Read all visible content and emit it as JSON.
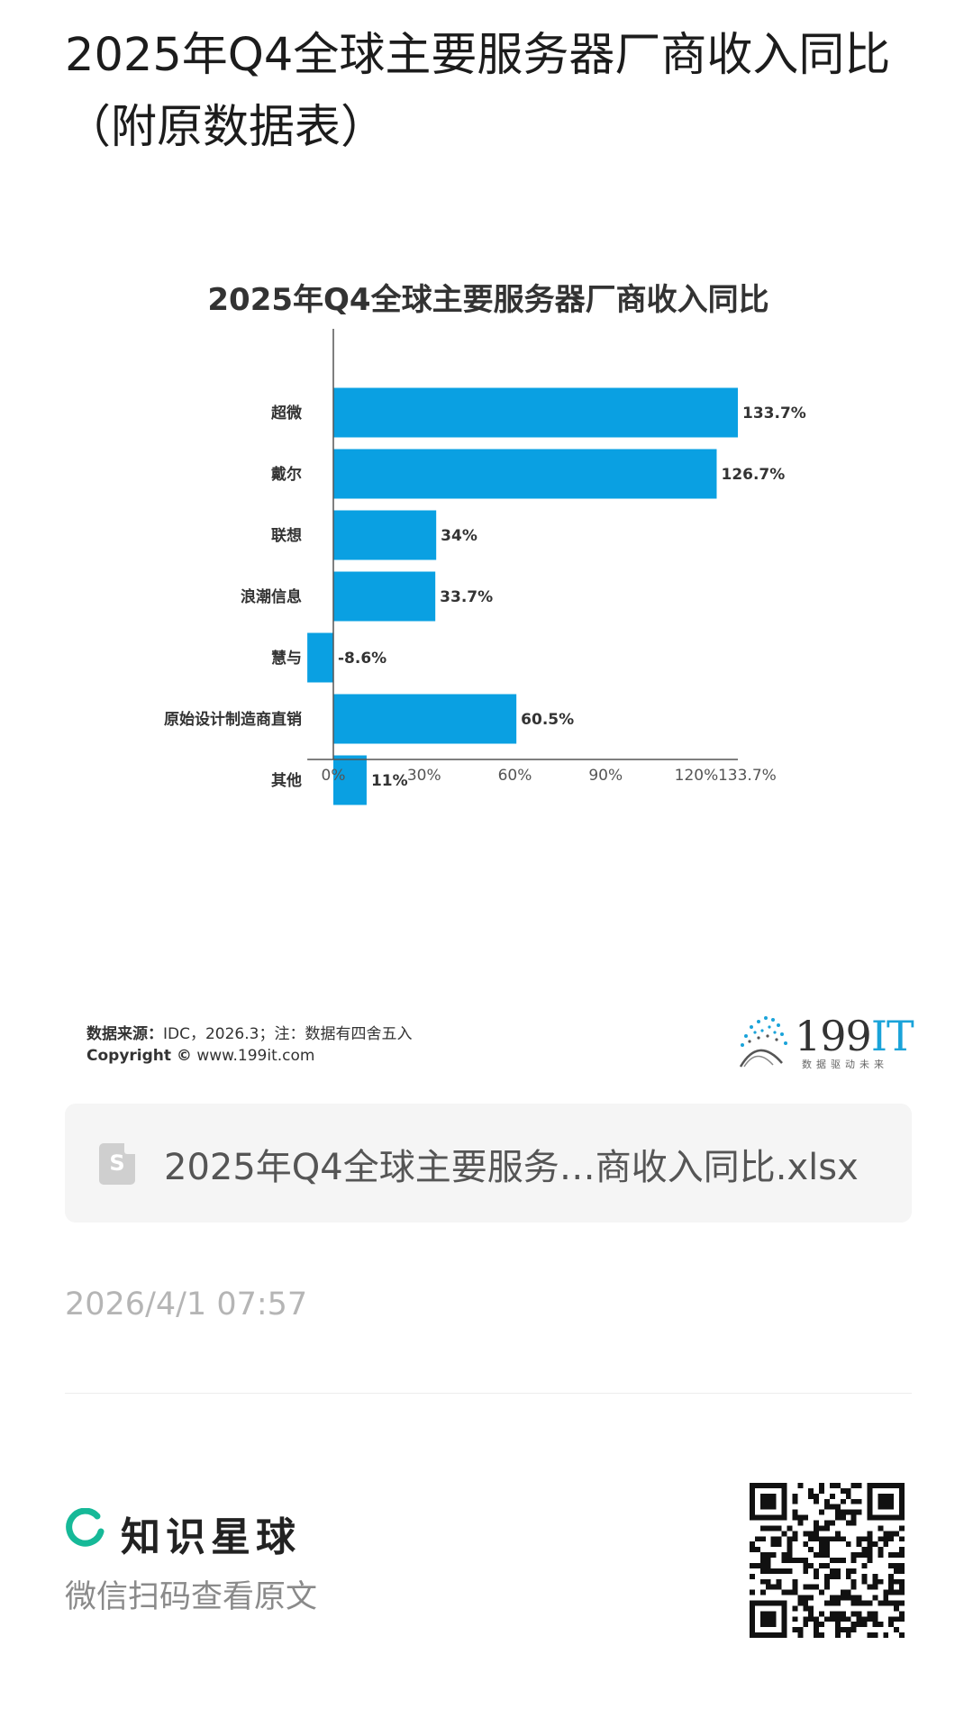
{
  "page": {
    "title": "2025年Q4全球主要服务器厂商收入同比（附原数据表）"
  },
  "chart": {
    "title": "2025年Q4全球主要服务器厂商收入同比",
    "source_label": "数据来源：",
    "source_text": "IDC，2026.3；注：数据有四舍五入",
    "copyright_label": "Copyright ©",
    "copyright_text": "www.199it.com",
    "brand_number": "199",
    "brand_it": "IT",
    "brand_slogan": "数据驱动未来",
    "bar_color": "#0aa0e2"
  },
  "chart_data": {
    "type": "bar",
    "orientation": "horizontal",
    "title": "2025年Q4全球主要服务器厂商收入同比",
    "categories": [
      "超微",
      "戴尔",
      "联想",
      "浪潮信息",
      "慧与",
      "原始设计制造商直销",
      "其他"
    ],
    "values": [
      133.7,
      126.7,
      34,
      33.7,
      -8.6,
      60.5,
      11
    ],
    "value_labels": [
      "133.7%",
      "126.7%",
      "34%",
      "33.7%",
      "-8.6%",
      "60.5%",
      "11%"
    ],
    "xticks": [
      0,
      30,
      60,
      90,
      120,
      133.7
    ],
    "xtick_labels": [
      "0%",
      "30%",
      "60%",
      "90%",
      "120%",
      "133.7%"
    ],
    "xlim": [
      -8.6,
      133.7
    ],
    "grid": false,
    "legend": "none"
  },
  "attachment": {
    "icon": "spreadsheet-icon",
    "icon_letter": "S",
    "file_name": "2025年Q4全球主要服务…商收入同比.xlsx"
  },
  "meta": {
    "timestamp": "2026/4/1 07:57"
  },
  "footer": {
    "brand": "知识星球",
    "brand_color": "#16b998",
    "scan_hint": "微信扫码查看原文"
  }
}
